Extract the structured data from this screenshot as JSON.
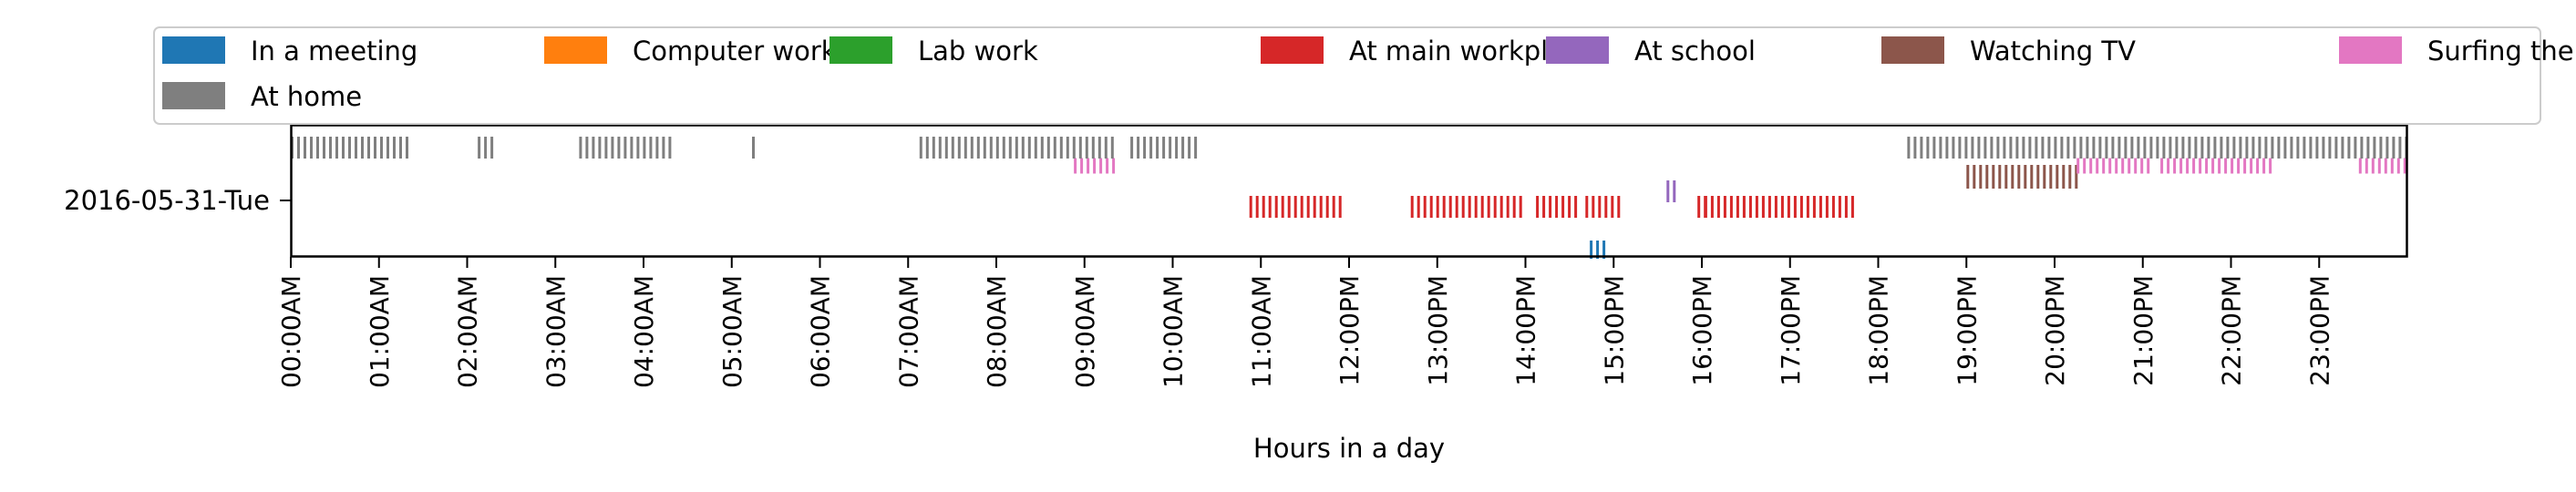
{
  "chart_data": {
    "type": "event-timeline",
    "xlabel": "Hours in a day",
    "ylabel": "",
    "day_label": "2016-05-31-Tue",
    "xlim_hours": [
      0,
      24
    ],
    "tick_labels": [
      "00:00AM",
      "01:00AM",
      "02:00AM",
      "03:00AM",
      "04:00AM",
      "05:00AM",
      "06:00AM",
      "07:00AM",
      "08:00AM",
      "09:00AM",
      "10:00AM",
      "11:00AM",
      "12:00PM",
      "13:00PM",
      "14:00PM",
      "15:00PM",
      "16:00PM",
      "17:00PM",
      "18:00PM",
      "19:00PM",
      "20:00PM",
      "21:00PM",
      "22:00PM",
      "23:00PM"
    ],
    "legend_placement": "top, 7 columns",
    "grid": false,
    "series": [
      {
        "name": "In a meeting",
        "color": "#1f77b4",
        "lane": 0,
        "intervals": [
          [
            14.73,
            14.93
          ]
        ]
      },
      {
        "name": "Computer work",
        "color": "#ff7f0e",
        "lane": 1,
        "intervals": []
      },
      {
        "name": "Lab work",
        "color": "#2ca02c",
        "lane": 2,
        "intervals": []
      },
      {
        "name": "At main workplace",
        "color": "#d62728",
        "lane": 3,
        "intervals": [
          [
            10.87,
            11.9
          ],
          [
            12.7,
            13.93
          ],
          [
            14.12,
            14.6
          ],
          [
            14.68,
            15.1
          ],
          [
            15.95,
            16.03
          ],
          [
            16.03,
            17.72
          ]
        ]
      },
      {
        "name": "At school",
        "color": "#9467bd",
        "lane": 4,
        "intervals": [
          [
            15.6,
            15.72
          ]
        ]
      },
      {
        "name": "Watching TV",
        "color": "#8c564b",
        "lane": 5,
        "intervals": [
          [
            19.0,
            20.25
          ]
        ]
      },
      {
        "name": "Surfing the internet",
        "color": "#e377c2",
        "lane": 6,
        "intervals": [
          [
            8.88,
            9.37
          ],
          [
            20.25,
            21.1
          ],
          [
            21.2,
            22.45
          ],
          [
            23.45,
            24.0
          ]
        ]
      },
      {
        "name": "At home",
        "color": "#7f7f7f",
        "lane": 7,
        "intervals": [
          [
            0.0,
            1.35
          ],
          [
            2.12,
            2.27
          ],
          [
            3.27,
            4.35
          ],
          [
            5.23,
            5.3
          ],
          [
            7.13,
            9.37
          ],
          [
            9.52,
            10.3
          ],
          [
            18.33,
            24.0
          ]
        ]
      }
    ]
  }
}
